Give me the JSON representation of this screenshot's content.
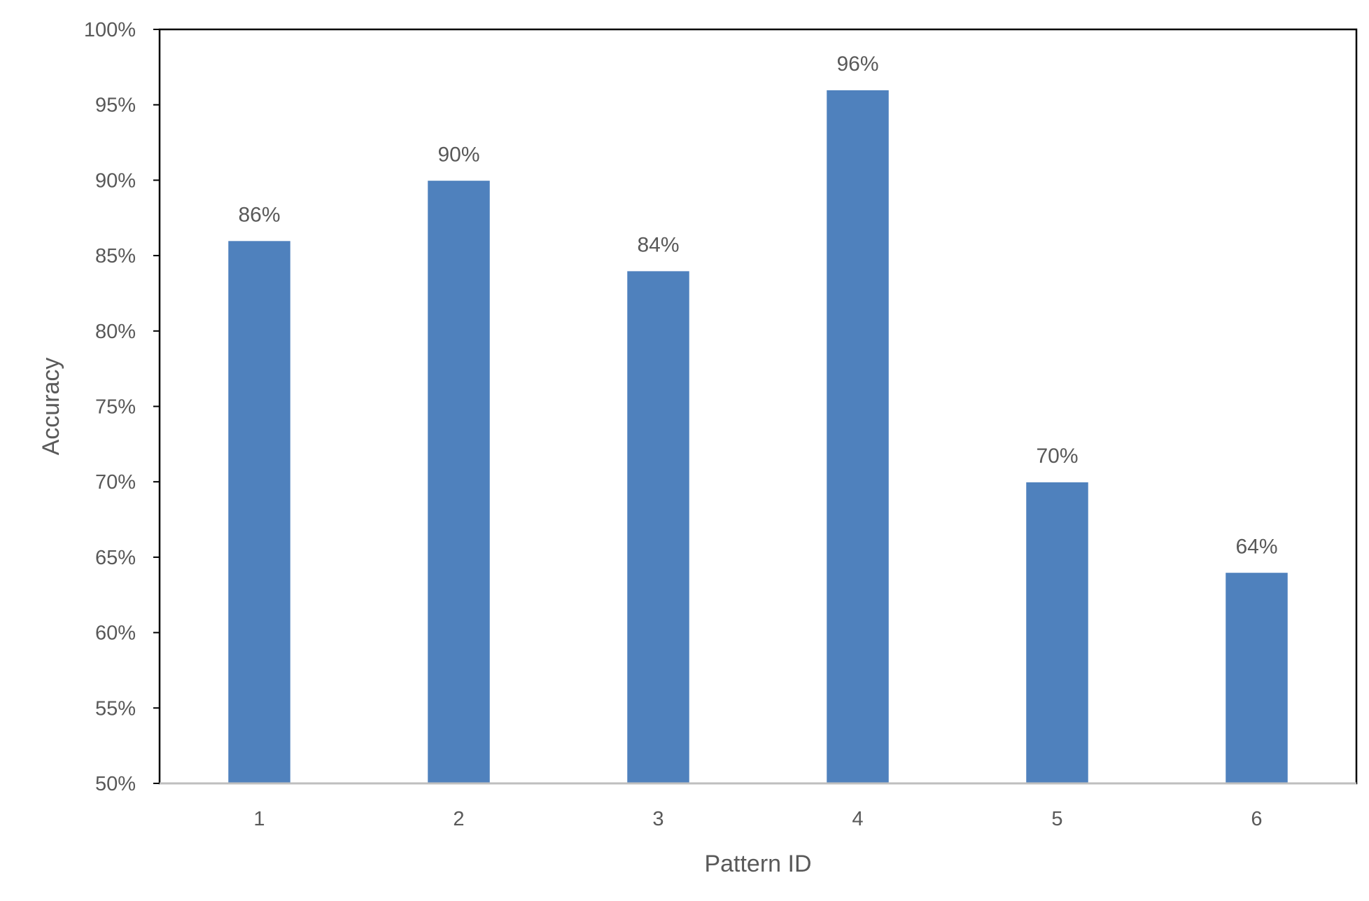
{
  "chart_data": {
    "type": "bar",
    "title": "",
    "xlabel": "Pattern ID",
    "ylabel": "Accuracy",
    "categories": [
      "1",
      "2",
      "3",
      "4",
      "5",
      "6"
    ],
    "values": [
      86,
      90,
      84,
      96,
      70,
      64
    ],
    "value_labels": [
      "86%",
      "90%",
      "84%",
      "96%",
      "70%",
      "64%"
    ],
    "ylim": [
      50,
      100
    ],
    "y_ticks": [
      50,
      55,
      60,
      65,
      70,
      75,
      80,
      85,
      90,
      95,
      100
    ],
    "y_tick_labels": [
      "50%",
      "55%",
      "60%",
      "65%",
      "70%",
      "75%",
      "80%",
      "85%",
      "90%",
      "95%",
      "100%"
    ],
    "grid": false,
    "legend": "none",
    "bar_color": "#4F81BD",
    "text_color": "#595959",
    "frame_color": "#000000"
  }
}
